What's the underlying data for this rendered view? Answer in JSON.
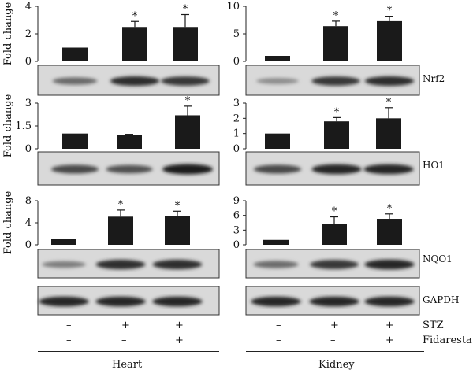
{
  "chart_data": [
    {
      "type": "bar",
      "panel": "Heart",
      "protein": "Nrf2",
      "ylabel": "Fold change",
      "ylim": [
        0,
        4
      ],
      "yticks": [
        "0",
        "2",
        "4"
      ],
      "categories": [
        "1",
        "2",
        "3"
      ],
      "values": [
        1.0,
        2.5,
        2.5
      ],
      "errors": [
        0,
        0.4,
        0.9
      ],
      "significant": [
        false,
        true,
        true
      ]
    },
    {
      "type": "bar",
      "panel": "Kidney",
      "protein": "Nrf2",
      "ylabel": "",
      "ylim": [
        0,
        10
      ],
      "yticks": [
        "0",
        "5",
        "10"
      ],
      "categories": [
        "1",
        "2",
        "3"
      ],
      "values": [
        1.0,
        6.4,
        7.3
      ],
      "errors": [
        0,
        0.9,
        0.9
      ],
      "significant": [
        false,
        true,
        true
      ]
    },
    {
      "type": "bar",
      "panel": "Heart",
      "protein": "HO1",
      "ylabel": "Fold change",
      "ylim": [
        0,
        3
      ],
      "yticks": [
        "0",
        "1.5",
        "3"
      ],
      "categories": [
        "1",
        "2",
        "3"
      ],
      "values": [
        1.0,
        0.88,
        2.2
      ],
      "errors": [
        0,
        0.07,
        0.6
      ],
      "significant": [
        false,
        false,
        true
      ]
    },
    {
      "type": "bar",
      "panel": "Kidney",
      "protein": "HO1",
      "ylabel": "",
      "ylim": [
        0,
        3
      ],
      "yticks": [
        "0",
        "1",
        "2",
        "3"
      ],
      "categories": [
        "1",
        "2",
        "3"
      ],
      "values": [
        1.0,
        1.8,
        2.0
      ],
      "errors": [
        0,
        0.25,
        0.7
      ],
      "significant": [
        false,
        true,
        true
      ]
    },
    {
      "type": "bar",
      "panel": "Heart",
      "protein": "NQO1",
      "ylabel": "Fold change",
      "ylim": [
        0,
        8
      ],
      "yticks": [
        "0",
        "4",
        "8"
      ],
      "categories": [
        "1",
        "2",
        "3"
      ],
      "values": [
        1.0,
        5.1,
        5.2
      ],
      "errors": [
        0,
        1.2,
        0.9
      ],
      "significant": [
        false,
        true,
        true
      ]
    },
    {
      "type": "bar",
      "panel": "Kidney",
      "protein": "NQO1",
      "ylabel": "",
      "ylim": [
        0,
        9
      ],
      "yticks": [
        "0",
        "3",
        "6",
        "9"
      ],
      "categories": [
        "1",
        "2",
        "3"
      ],
      "values": [
        1.0,
        4.2,
        5.3
      ],
      "errors": [
        0,
        1.5,
        1.0
      ],
      "significant": [
        false,
        true,
        true
      ]
    }
  ],
  "blots": [
    {
      "panel": "Heart",
      "label": "Nrf2",
      "intensity": [
        0.55,
        0.9,
        0.85
      ]
    },
    {
      "panel": "Kidney",
      "label": "Nrf2",
      "intensity": [
        0.35,
        0.85,
        0.9
      ]
    },
    {
      "panel": "Heart",
      "label": "HO1",
      "intensity": [
        0.75,
        0.7,
        1.0
      ]
    },
    {
      "panel": "Kidney",
      "label": "HO1",
      "intensity": [
        0.75,
        0.95,
        0.95
      ]
    },
    {
      "panel": "Heart",
      "label": "NQO1",
      "intensity": [
        0.45,
        0.9,
        0.9
      ]
    },
    {
      "panel": "Kidney",
      "label": "NQO1",
      "intensity": [
        0.55,
        0.85,
        0.95
      ]
    },
    {
      "panel": "Heart",
      "label": "GAPDH",
      "intensity": [
        0.95,
        0.95,
        0.95
      ]
    },
    {
      "panel": "Kidney",
      "label": "GAPDH",
      "intensity": [
        0.95,
        0.95,
        0.95
      ]
    }
  ],
  "labels": {
    "nrf2": "Nrf2",
    "ho1": "HO1",
    "nqo1": "NQO1",
    "gapdh": "GAPDH",
    "stz": "STZ",
    "fidarestat": "Fidarestat",
    "heart": "Heart",
    "kidney": "Kidney",
    "minus": "–",
    "plus": "+",
    "star": "*"
  },
  "conditions": {
    "stz": [
      "–",
      "+",
      "+"
    ],
    "fidarestat": [
      "–",
      "–",
      "+"
    ]
  }
}
